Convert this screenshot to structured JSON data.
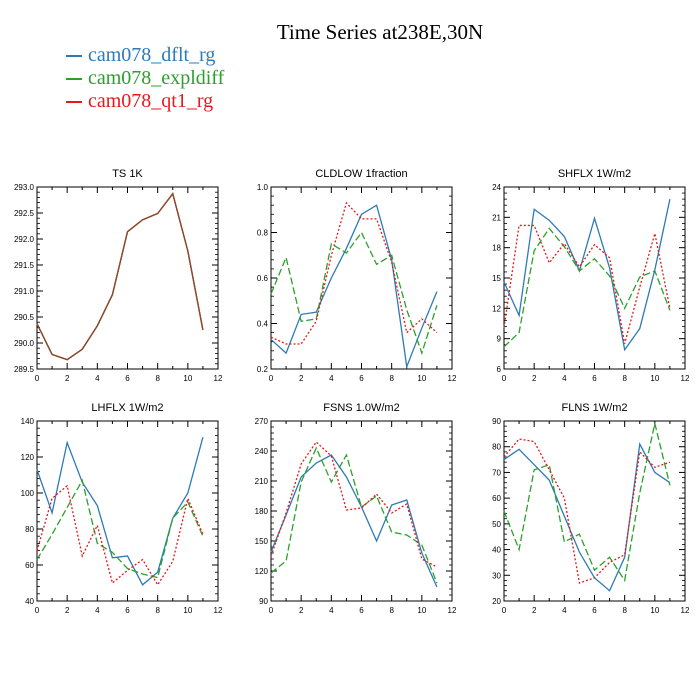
{
  "title": "Time Series at238E,30N",
  "colors": {
    "dflt": "#2c7bb6",
    "expl": "#2ca02c",
    "qt1": "#e31a1c",
    "ts_overlap": "#8b4a2b"
  },
  "legend": [
    {
      "name": "cam078_dflt_rg",
      "color": "#2c7bb6"
    },
    {
      "name": "cam078_expldiff",
      "color": "#2ca02c"
    },
    {
      "name": "cam078_qt1_rg",
      "color": "#e31a1c"
    }
  ],
  "chart_data": [
    {
      "type": "line",
      "title": "TS   1K",
      "x": [
        0,
        1,
        2,
        3,
        4,
        5,
        6,
        7,
        8,
        9,
        10,
        11
      ],
      "xlim": [
        0,
        12
      ],
      "xticks": [
        0,
        2,
        4,
        6,
        8,
        10,
        12
      ],
      "ylim": [
        289.5,
        293.0
      ],
      "yticks": [
        "289.5",
        "290.0",
        "290.5",
        "291.0",
        "291.5",
        "292.0",
        "292.5",
        "293.0"
      ],
      "series": [
        {
          "name": "cam078_dflt_rg",
          "values": [
            290.37,
            289.78,
            289.68,
            289.88,
            290.33,
            290.93,
            292.14,
            292.37,
            292.49,
            292.87,
            291.77,
            290.25
          ]
        },
        {
          "name": "cam078_expldiff",
          "values": [
            290.37,
            289.78,
            289.68,
            289.88,
            290.33,
            290.93,
            292.14,
            292.37,
            292.49,
            292.87,
            291.77,
            290.25
          ]
        },
        {
          "name": "cam078_qt1_rg",
          "values": [
            290.37,
            289.78,
            289.68,
            289.88,
            290.33,
            290.93,
            292.14,
            292.37,
            292.49,
            292.87,
            291.77,
            290.25
          ]
        }
      ]
    },
    {
      "type": "line",
      "title": "CLDLOW   1fraction",
      "x": [
        0,
        1,
        2,
        3,
        4,
        5,
        6,
        7,
        8,
        9,
        10,
        11
      ],
      "xlim": [
        0,
        12
      ],
      "xticks": [
        0,
        2,
        4,
        6,
        8,
        10,
        12
      ],
      "ylim": [
        0.2,
        1.0
      ],
      "yticks": [
        "0.2",
        "0.4",
        "0.6",
        "0.8",
        "1.0"
      ],
      "series": [
        {
          "name": "cam078_dflt_rg",
          "values": [
            0.33,
            0.27,
            0.44,
            0.45,
            0.6,
            0.73,
            0.88,
            0.92,
            0.68,
            0.21,
            0.38,
            0.54
          ]
        },
        {
          "name": "cam078_expldiff",
          "values": [
            0.53,
            0.69,
            0.41,
            0.42,
            0.75,
            0.71,
            0.8,
            0.66,
            0.7,
            0.46,
            0.27,
            0.48
          ]
        },
        {
          "name": "cam078_qt1_rg",
          "values": [
            0.34,
            0.31,
            0.31,
            0.41,
            0.7,
            0.93,
            0.86,
            0.86,
            0.67,
            0.36,
            0.42,
            0.36
          ]
        }
      ]
    },
    {
      "type": "line",
      "title": "SHFLX   1W/m2",
      "x": [
        0,
        1,
        2,
        3,
        4,
        5,
        6,
        7,
        8,
        9,
        10,
        11
      ],
      "xlim": [
        0,
        12
      ],
      "xticks": [
        0,
        2,
        4,
        6,
        8,
        10,
        12
      ],
      "ylim": [
        6,
        24
      ],
      "yticks": [
        "6",
        "9",
        "12",
        "15",
        "18",
        "21",
        "24"
      ],
      "series": [
        {
          "name": "cam078_dflt_rg",
          "values": [
            14.6,
            11.3,
            21.8,
            20.7,
            19.1,
            15.7,
            20.9,
            16.0,
            7.9,
            10.0,
            15.8,
            22.8
          ]
        },
        {
          "name": "cam078_expldiff",
          "values": [
            8.2,
            9.6,
            17.7,
            19.9,
            18.1,
            15.7,
            16.9,
            15.2,
            12.0,
            15.1,
            15.7,
            11.8
          ]
        },
        {
          "name": "cam078_qt1_rg",
          "values": [
            10.1,
            20.2,
            20.2,
            16.5,
            18.4,
            16.1,
            18.3,
            17.0,
            8.5,
            14.1,
            19.4,
            12.0
          ]
        }
      ]
    },
    {
      "type": "line",
      "title": "LHFLX   1W/m2",
      "x": [
        0,
        1,
        2,
        3,
        4,
        5,
        6,
        7,
        8,
        9,
        10,
        11
      ],
      "xlim": [
        0,
        12
      ],
      "xticks": [
        0,
        2,
        4,
        6,
        8,
        10,
        12
      ],
      "ylim": [
        40,
        140
      ],
      "yticks": [
        "40",
        "60",
        "80",
        "100",
        "120",
        "140"
      ],
      "series": [
        {
          "name": "cam078_dflt_rg",
          "values": [
            113,
            89,
            128,
            106,
            93,
            64,
            65,
            49,
            56,
            86,
            100,
            131
          ]
        },
        {
          "name": "cam078_expldiff",
          "values": [
            63,
            77,
            92,
            107,
            72,
            67,
            58,
            55,
            53,
            86,
            95,
            76
          ]
        },
        {
          "name": "cam078_qt1_rg",
          "values": [
            68,
            97,
            104,
            65,
            82,
            50,
            57,
            63,
            49,
            62,
            97,
            77
          ]
        }
      ]
    },
    {
      "type": "line",
      "title": "FSNS   1.0W/m2",
      "x": [
        0,
        1,
        2,
        3,
        4,
        5,
        6,
        7,
        8,
        9,
        10,
        11
      ],
      "xlim": [
        0,
        12
      ],
      "xticks": [
        0,
        2,
        4,
        6,
        8,
        10,
        12
      ],
      "ylim": [
        90,
        270
      ],
      "yticks": [
        "90",
        "120",
        "150",
        "180",
        "210",
        "240",
        "270"
      ],
      "series": [
        {
          "name": "cam078_dflt_rg",
          "values": [
            139,
            176,
            214,
            228,
            236,
            214,
            184,
            150,
            186,
            191,
            138,
            104
          ]
        },
        {
          "name": "cam078_expldiff",
          "values": [
            118,
            130,
            209,
            243,
            209,
            236,
            184,
            195,
            159,
            156,
            146,
            108
          ]
        },
        {
          "name": "cam078_qt1_rg",
          "values": [
            135,
            178,
            227,
            249,
            235,
            181,
            183,
            197,
            178,
            187,
            132,
            124
          ]
        }
      ]
    },
    {
      "type": "line",
      "title": "FLNS   1W/m2",
      "x": [
        0,
        1,
        2,
        3,
        4,
        5,
        6,
        7,
        8,
        9,
        10,
        11
      ],
      "xlim": [
        0,
        12
      ],
      "xticks": [
        0,
        2,
        4,
        6,
        8,
        10,
        12
      ],
      "ylim": [
        20,
        90
      ],
      "yticks": [
        "20",
        "30",
        "40",
        "50",
        "60",
        "70",
        "80",
        "90"
      ],
      "series": [
        {
          "name": "cam078_dflt_rg",
          "values": [
            75,
            79,
            73,
            67,
            53,
            39,
            29,
            24,
            37,
            81,
            70,
            66
          ]
        },
        {
          "name": "cam078_expldiff",
          "values": [
            55,
            40,
            71,
            73,
            43,
            46,
            32,
            37,
            28,
            62,
            89,
            65
          ]
        },
        {
          "name": "cam078_qt1_rg",
          "values": [
            76,
            83,
            82,
            71,
            60,
            27,
            29,
            35,
            38,
            78,
            72,
            74
          ]
        }
      ]
    }
  ]
}
